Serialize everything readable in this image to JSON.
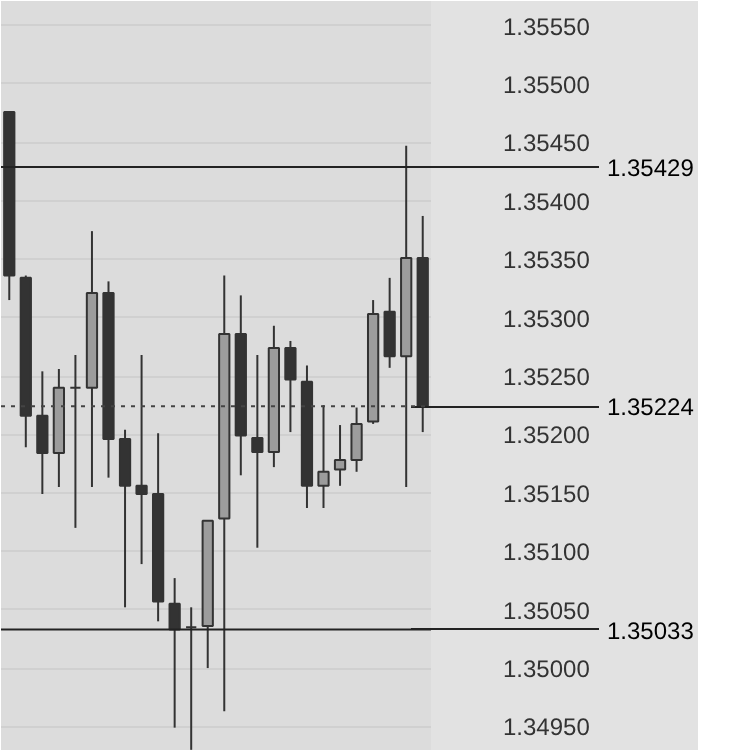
{
  "chart_data": {
    "type": "candlestick",
    "categories": [
      null,
      null,
      null,
      null,
      null,
      null,
      null,
      null,
      null,
      null,
      null,
      null,
      null,
      null,
      null,
      null,
      null,
      null,
      null,
      null,
      null,
      null,
      null,
      null,
      null,
      null
    ],
    "ohlc": [
      [
        1.35476,
        1.35476,
        1.35315,
        1.35336
      ],
      [
        1.35334,
        1.35336,
        1.35189,
        1.35216
      ],
      [
        1.35216,
        1.35254,
        1.35149,
        1.35184
      ],
      [
        1.35184,
        1.35256,
        1.35155,
        1.3524
      ],
      [
        1.3524,
        1.35268,
        1.3512,
        1.3524
      ],
      [
        1.3524,
        1.35374,
        1.35155,
        1.35321
      ],
      [
        1.35321,
        1.35331,
        1.35163,
        1.35196
      ],
      [
        1.35196,
        1.35204,
        1.35052,
        1.35156
      ],
      [
        1.35156,
        1.35268,
        1.35089,
        1.35149
      ],
      [
        1.35149,
        1.35201,
        1.3504,
        1.35057
      ],
      [
        1.35055,
        1.35077,
        1.34949,
        1.35033
      ],
      [
        1.35035,
        1.35052,
        1.3493,
        1.35035
      ],
      [
        1.35036,
        1.35126,
        1.35,
        1.35126
      ],
      [
        1.35128,
        1.35336,
        1.34963,
        1.35286
      ],
      [
        1.35286,
        1.35319,
        1.35165,
        1.35199
      ],
      [
        1.35197,
        1.35268,
        1.35103,
        1.35185
      ],
      [
        1.35185,
        1.35293,
        1.35172,
        1.35274
      ],
      [
        1.35274,
        1.3528,
        1.35202,
        1.35247
      ],
      [
        1.35245,
        1.35259,
        1.35137,
        1.35156
      ],
      [
        1.35156,
        1.35225,
        1.35137,
        1.35168
      ],
      [
        1.3517,
        1.35208,
        1.35156,
        1.35178
      ],
      [
        1.35178,
        1.35223,
        1.35168,
        1.35209
      ],
      [
        1.35211,
        1.35315,
        1.35209,
        1.35303
      ],
      [
        1.35305,
        1.35334,
        1.35257,
        1.35267
      ],
      [
        1.35267,
        1.35447,
        1.35155,
        1.35351
      ],
      [
        1.35351,
        1.35387,
        1.35202,
        1.35224
      ]
    ],
    "ylim": [
      1.34929,
      1.35571
    ],
    "yticks": [
      {
        "value": 1.3495,
        "label": "1.34950"
      },
      {
        "value": 1.35,
        "label": "1.35000"
      },
      {
        "value": 1.3505,
        "label": "1.35050"
      },
      {
        "value": 1.351,
        "label": "1.35100"
      },
      {
        "value": 1.3515,
        "label": "1.35150"
      },
      {
        "value": 1.352,
        "label": "1.35200"
      },
      {
        "value": 1.3525,
        "label": "1.35250"
      },
      {
        "value": 1.353,
        "label": "1.35300"
      },
      {
        "value": 1.3535,
        "label": "1.35350"
      },
      {
        "value": 1.354,
        "label": "1.35400"
      },
      {
        "value": 1.3545,
        "label": "1.35450"
      },
      {
        "value": 1.355,
        "label": "1.35500"
      },
      {
        "value": 1.3555,
        "label": "1.35550"
      }
    ],
    "grid": "y",
    "tick_labels": "y",
    "ref_lines": [
      {
        "axis": "y",
        "value": 1.35429,
        "label": "1.35429",
        "line_style": "solid",
        "color": "#222222"
      },
      {
        "axis": "y",
        "value": 1.35224,
        "label": "1.35224",
        "line_style": "dotted",
        "color": "#444444"
      },
      {
        "axis": "y",
        "value": 1.35033,
        "label": "1.35033",
        "line_style": "solid",
        "color": "#222222"
      }
    ]
  }
}
